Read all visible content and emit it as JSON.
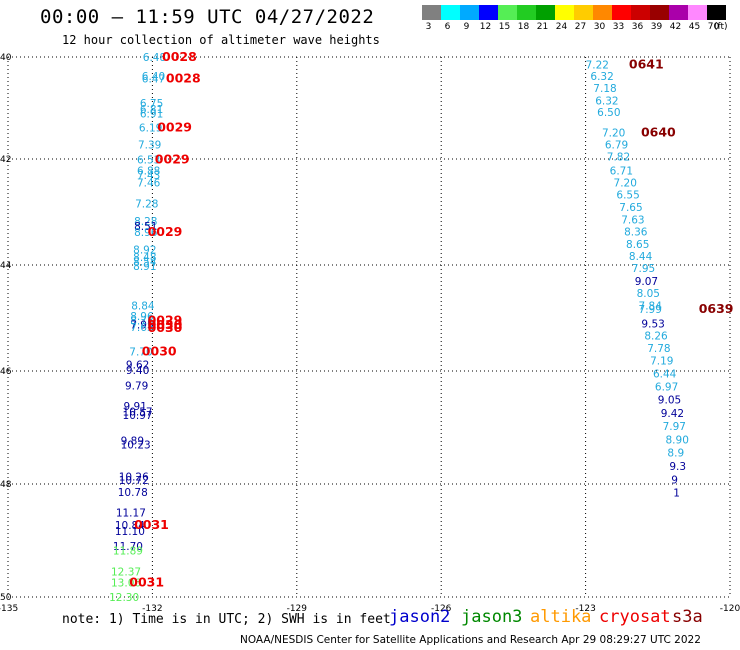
{
  "title": "00:00 — 11:59 UTC 04/27/2022",
  "subtitle": "12 hour collection of altimeter wave heights",
  "legend": {
    "unit": "(ft)",
    "bins": [
      {
        "color": "#808080",
        "label": "3"
      },
      {
        "color": "#00ffff",
        "label": "6"
      },
      {
        "color": "#00aaff",
        "label": "9"
      },
      {
        "color": "#0000ff",
        "label": "12"
      },
      {
        "color": "#55ee55",
        "label": "15"
      },
      {
        "color": "#22cc22",
        "label": "18"
      },
      {
        "color": "#00a000",
        "label": "21"
      },
      {
        "color": "#ffff00",
        "label": "24"
      },
      {
        "color": "#ffcc00",
        "label": "27"
      },
      {
        "color": "#ff8800",
        "label": "30"
      },
      {
        "color": "#ff0000",
        "label": "33"
      },
      {
        "color": "#cc0000",
        "label": "36"
      },
      {
        "color": "#990000",
        "label": "39"
      },
      {
        "color": "#aa00aa",
        "label": "42"
      },
      {
        "color": "#ff88ff",
        "label": "45"
      },
      {
        "color": "#000000",
        "label": "70"
      }
    ]
  },
  "axes": {
    "lon_ticks": [
      "-135",
      "-132",
      "-129",
      "-126",
      "-123",
      "-120"
    ],
    "lat_ticks": [
      "40",
      "42",
      "44",
      "46",
      "48",
      "50"
    ]
  },
  "map_labels": {
    "track_w": [
      {
        "lat": 40.0,
        "lon": -132.2,
        "v": "6.48",
        "c": "#22aadd"
      },
      {
        "lat": 40.37,
        "lon": -132.22,
        "v": "6.40",
        "c": "#22aadd"
      },
      {
        "lat": 40.42,
        "lon": -132.22,
        "v": "6.47",
        "c": "#22aadd"
      },
      {
        "lat": 40.9,
        "lon": -132.26,
        "v": "6.75",
        "c": "#22aadd"
      },
      {
        "lat": 41.02,
        "lon": -132.26,
        "v": "6.81",
        "c": "#22aadd"
      },
      {
        "lat": 41.11,
        "lon": -132.26,
        "v": "6.91",
        "c": "#22aadd"
      },
      {
        "lat": 41.38,
        "lon": -132.28,
        "v": "6.19",
        "c": "#22aadd"
      },
      {
        "lat": 41.72,
        "lon": -132.3,
        "v": "7.39",
        "c": "#22aadd"
      },
      {
        "lat": 42.01,
        "lon": -132.32,
        "v": "6.53",
        "c": "#22aadd"
      },
      {
        "lat": 42.22,
        "lon": -132.32,
        "v": "6.88",
        "c": "#22aadd"
      },
      {
        "lat": 42.3,
        "lon": -132.32,
        "v": "7.43",
        "c": "#22aadd"
      },
      {
        "lat": 42.44,
        "lon": -132.32,
        "v": "7.46",
        "c": "#22aadd"
      },
      {
        "lat": 42.84,
        "lon": -132.36,
        "v": "7.28",
        "c": "#22aadd"
      },
      {
        "lat": 43.17,
        "lon": -132.38,
        "v": "8.28",
        "c": "#22aadd"
      },
      {
        "lat": 43.26,
        "lon": -132.38,
        "v": "8.51",
        "c": "#000099"
      },
      {
        "lat": 43.38,
        "lon": -132.38,
        "v": "8.96",
        "c": "#22aadd"
      },
      {
        "lat": 43.71,
        "lon": -132.4,
        "v": "8.92",
        "c": "#22aadd"
      },
      {
        "lat": 43.85,
        "lon": -132.4,
        "v": "8.48",
        "c": "#22aadd"
      },
      {
        "lat": 43.93,
        "lon": -132.4,
        "v": "8.54",
        "c": "#22aadd"
      },
      {
        "lat": 44.02,
        "lon": -132.4,
        "v": "8.91",
        "c": "#22aadd"
      },
      {
        "lat": 44.76,
        "lon": -132.44,
        "v": "8.84",
        "c": "#22aadd"
      },
      {
        "lat": 44.96,
        "lon": -132.46,
        "v": "8.96",
        "c": "#22aadd"
      },
      {
        "lat": 45.05,
        "lon": -132.46,
        "v": "8.75",
        "c": "#22aadd"
      },
      {
        "lat": 45.12,
        "lon": -132.46,
        "v": "7.95",
        "c": "#000099"
      },
      {
        "lat": 45.17,
        "lon": -132.46,
        "v": "7.65",
        "c": "#22aadd"
      },
      {
        "lat": 45.63,
        "lon": -132.48,
        "v": "7.70",
        "c": "#22aadd"
      },
      {
        "lat": 45.88,
        "lon": -132.55,
        "v": "9.62",
        "c": "#000099"
      },
      {
        "lat": 45.98,
        "lon": -132.55,
        "v": "9.40",
        "c": "#000099"
      },
      {
        "lat": 46.26,
        "lon": -132.57,
        "v": "9.79",
        "c": "#000099"
      },
      {
        "lat": 46.62,
        "lon": -132.6,
        "v": "9.91",
        "c": "#000099"
      },
      {
        "lat": 46.72,
        "lon": -132.62,
        "v": "10.57",
        "c": "#000099"
      },
      {
        "lat": 46.78,
        "lon": -132.62,
        "v": "10.97",
        "c": "#000099"
      },
      {
        "lat": 47.23,
        "lon": -132.66,
        "v": "9.89",
        "c": "#000099"
      },
      {
        "lat": 47.3,
        "lon": -132.66,
        "v": "10.23",
        "c": "#000099"
      },
      {
        "lat": 47.87,
        "lon": -132.7,
        "v": "10.26",
        "c": "#000099"
      },
      {
        "lat": 47.93,
        "lon": -132.7,
        "v": "10.72",
        "c": "#000099"
      },
      {
        "lat": 48.14,
        "lon": -132.72,
        "v": "10.78",
        "c": "#000099"
      },
      {
        "lat": 48.5,
        "lon": -132.76,
        "v": "11.17",
        "c": "#000099"
      },
      {
        "lat": 48.73,
        "lon": -132.78,
        "v": "10.84",
        "c": "#000099"
      },
      {
        "lat": 48.83,
        "lon": -132.78,
        "v": "11.10",
        "c": "#000099"
      },
      {
        "lat": 49.1,
        "lon": -132.82,
        "v": "11.70",
        "c": "#000099"
      },
      {
        "lat": 49.18,
        "lon": -132.82,
        "v": "11.89",
        "c": "#55ee55"
      },
      {
        "lat": 49.55,
        "lon": -132.86,
        "v": "12.37",
        "c": "#55ee55"
      },
      {
        "lat": 49.74,
        "lon": -132.86,
        "v": "13.06",
        "c": "#55ee55"
      },
      {
        "lat": 50.0,
        "lon": -132.9,
        "v": "12.30",
        "c": "#55ee55"
      }
    ],
    "track_e": [
      {
        "lat": 40.15,
        "lon": -123.0,
        "v": "7.22",
        "c": "#22aadd"
      },
      {
        "lat": 40.37,
        "lon": -122.9,
        "v": "6.32",
        "c": "#22aadd"
      },
      {
        "lat": 40.61,
        "lon": -122.84,
        "v": "7.18",
        "c": "#22aadd"
      },
      {
        "lat": 40.85,
        "lon": -122.8,
        "v": "6.32",
        "c": "#22aadd"
      },
      {
        "lat": 41.08,
        "lon": -122.76,
        "v": "6.50",
        "c": "#22aadd"
      },
      {
        "lat": 41.48,
        "lon": -122.66,
        "v": "7.20",
        "c": "#22aadd"
      },
      {
        "lat": 41.72,
        "lon": -122.6,
        "v": "6.79",
        "c": "#22aadd"
      },
      {
        "lat": 41.95,
        "lon": -122.56,
        "v": "7.82",
        "c": "#22aadd"
      },
      {
        "lat": 42.22,
        "lon": -122.5,
        "v": "6.71",
        "c": "#22aadd"
      },
      {
        "lat": 42.44,
        "lon": -122.42,
        "v": "7.20",
        "c": "#22aadd"
      },
      {
        "lat": 42.67,
        "lon": -122.36,
        "v": "6.55",
        "c": "#22aadd"
      },
      {
        "lat": 42.91,
        "lon": -122.3,
        "v": "7.65",
        "c": "#22aadd"
      },
      {
        "lat": 43.14,
        "lon": -122.26,
        "v": "7.63",
        "c": "#22aadd"
      },
      {
        "lat": 43.37,
        "lon": -122.2,
        "v": "8.36",
        "c": "#22aadd"
      },
      {
        "lat": 43.6,
        "lon": -122.16,
        "v": "8.65",
        "c": "#22aadd"
      },
      {
        "lat": 43.83,
        "lon": -122.1,
        "v": "8.44",
        "c": "#22aadd"
      },
      {
        "lat": 44.06,
        "lon": -122.04,
        "v": "7.95",
        "c": "#22aadd"
      },
      {
        "lat": 44.3,
        "lon": -121.98,
        "v": "9.07",
        "c": "#000099"
      },
      {
        "lat": 44.53,
        "lon": -121.94,
        "v": "8.05",
        "c": "#22aadd"
      },
      {
        "lat": 44.76,
        "lon": -121.9,
        "v": "7.84",
        "c": "#22aadd"
      },
      {
        "lat": 44.83,
        "lon": -121.9,
        "v": "7.99",
        "c": "#22aadd"
      },
      {
        "lat": 45.1,
        "lon": -121.84,
        "v": "9.53",
        "c": "#000099"
      },
      {
        "lat": 45.33,
        "lon": -121.78,
        "v": "8.26",
        "c": "#22aadd"
      },
      {
        "lat": 45.57,
        "lon": -121.72,
        "v": "7.78",
        "c": "#22aadd"
      },
      {
        "lat": 45.8,
        "lon": -121.66,
        "v": "7.19",
        "c": "#22aadd"
      },
      {
        "lat": 46.04,
        "lon": -121.6,
        "v": "6.44",
        "c": "#22aadd"
      },
      {
        "lat": 46.27,
        "lon": -121.56,
        "v": "6.97",
        "c": "#22aadd"
      },
      {
        "lat": 46.5,
        "lon": -121.5,
        "v": "9.05",
        "c": "#000099"
      },
      {
        "lat": 46.74,
        "lon": -121.44,
        "v": "9.42",
        "c": "#000099"
      },
      {
        "lat": 46.97,
        "lon": -121.4,
        "v": "7.97",
        "c": "#22aadd"
      },
      {
        "lat": 47.21,
        "lon": -121.34,
        "v": "8.90",
        "c": "#22aadd"
      },
      {
        "lat": 47.44,
        "lon": -121.3,
        "v": "8.9",
        "c": "#22aadd"
      },
      {
        "lat": 47.68,
        "lon": -121.26,
        "v": "9.3",
        "c": "#000099"
      },
      {
        "lat": 47.92,
        "lon": -121.22,
        "v": "9",
        "c": "#000099"
      },
      {
        "lat": 48.15,
        "lon": -121.18,
        "v": "1",
        "c": "#000099"
      }
    ],
    "times": [
      {
        "lat": 40.0,
        "lon": -131.8,
        "v": "0028",
        "c": "#ee0000"
      },
      {
        "lat": 40.42,
        "lon": -131.72,
        "v": "0028",
        "c": "#ee0000"
      },
      {
        "lat": 41.38,
        "lon": -131.9,
        "v": "0029",
        "c": "#ee0000"
      },
      {
        "lat": 42.01,
        "lon": -131.95,
        "v": "0029",
        "c": "#ee0000"
      },
      {
        "lat": 43.38,
        "lon": -132.1,
        "v": "0029",
        "c": "#ee0000"
      },
      {
        "lat": 45.05,
        "lon": -132.1,
        "v": "0029",
        "c": "#ee0000"
      },
      {
        "lat": 45.13,
        "lon": -132.1,
        "v": "0030",
        "c": "#ee0000"
      },
      {
        "lat": 45.19,
        "lon": -132.1,
        "v": "0030",
        "c": "#ee0000"
      },
      {
        "lat": 45.63,
        "lon": -132.22,
        "v": "0030",
        "c": "#ee0000"
      },
      {
        "lat": 48.73,
        "lon": -132.38,
        "v": "0031",
        "c": "#ee0000"
      },
      {
        "lat": 49.74,
        "lon": -132.48,
        "v": "0031",
        "c": "#ee0000"
      },
      {
        "lat": 40.15,
        "lon": -122.1,
        "v": "0641",
        "c": "#880000"
      },
      {
        "lat": 41.48,
        "lon": -121.85,
        "v": "0640",
        "c": "#880000"
      },
      {
        "lat": 44.83,
        "lon": -120.65,
        "v": "0639",
        "c": "#880000"
      }
    ]
  },
  "note": "note: 1) Time is in UTC; 2) SWH is in feet",
  "satellites": [
    {
      "name": "jason2",
      "color": "#0000cc"
    },
    {
      "name": "jason3",
      "color": "#008800"
    },
    {
      "name": "altika",
      "color": "#ff9900"
    },
    {
      "name": "cryosat",
      "color": "#ee0000"
    },
    {
      "name": "s3a",
      "color": "#880000"
    }
  ],
  "credit": "NOAA/NESDIS Center for Satellite Applications and Research     Apr 29 08:29:27 UTC 2022"
}
